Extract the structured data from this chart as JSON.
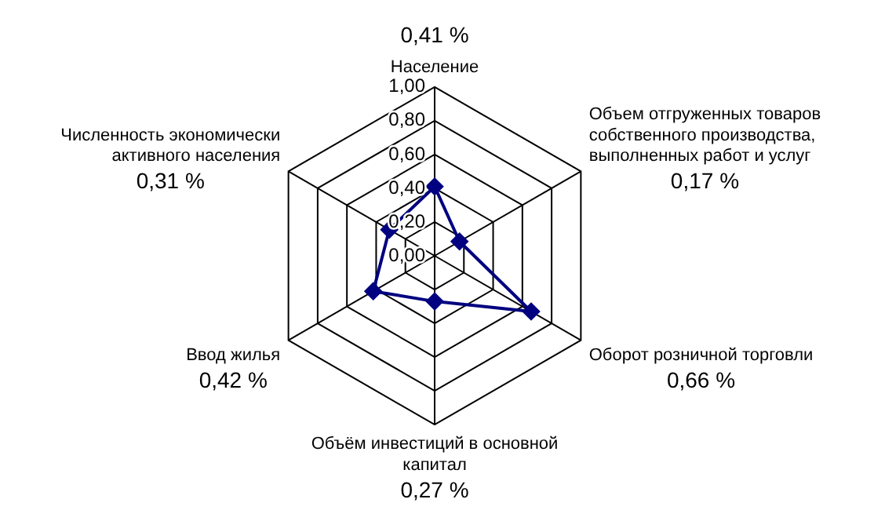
{
  "chart_data": {
    "type": "radar",
    "categories": [
      "Население",
      "Объем отгруженных товаров собственного производства, выполненных работ и услуг",
      "Оборот розничной торговли",
      "Объём инвестиций в основной капитал",
      "Ввод жилья",
      "Численность экономически активного населения"
    ],
    "series": [
      {
        "color": "#000080",
        "values": [
          0.41,
          0.17,
          0.66,
          0.27,
          0.42,
          0.31
        ]
      }
    ],
    "annotations": [
      "0,41 %",
      "0,17 %",
      "0,66 %",
      "0,27 %",
      "0,42 %",
      "0,31 %"
    ],
    "ylim": [
      0,
      1
    ],
    "yticks": [
      {
        "value": 0,
        "label": "0,00"
      },
      {
        "value": 0.2,
        "label": "0,20"
      },
      {
        "value": 0.4,
        "label": "0,40"
      },
      {
        "value": 0.6,
        "label": "0,60"
      },
      {
        "value": 0.8,
        "label": "0,80"
      },
      {
        "value": 1,
        "label": "1,00"
      }
    ],
    "grid": true,
    "legend": false,
    "marker": "diamond",
    "line_style": "solid"
  }
}
